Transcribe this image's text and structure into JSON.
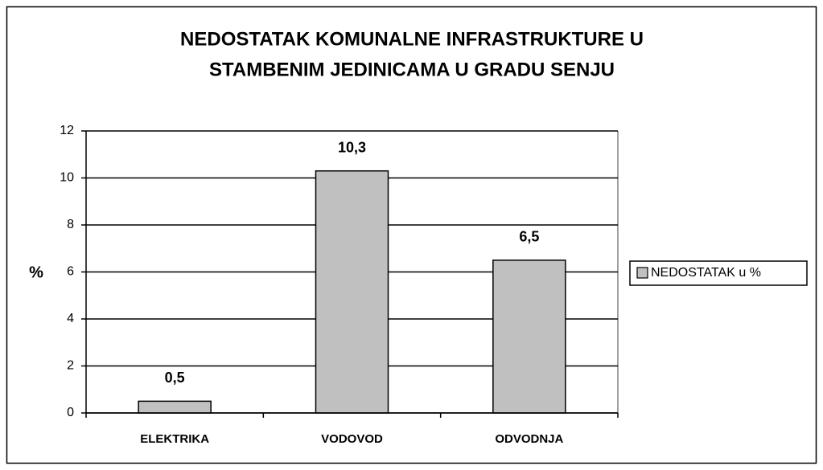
{
  "chart_data": {
    "type": "bar",
    "title": [
      "NEDOSTATAK KOMUNALNE INFRASTRUKTURE U",
      "STAMBENIM JEDINICAMA U GRADU SENJU"
    ],
    "ylabel": "%",
    "categories": [
      "ELEKTRIKA",
      "VODOVOD",
      "ODVODNJA"
    ],
    "series": [
      {
        "name": "NEDOSTATAK u %",
        "color": "#c0c0c0",
        "values": [
          0.5,
          10.3,
          6.5
        ],
        "value_labels": [
          "0,5",
          "10,3",
          "6,5"
        ]
      }
    ],
    "ylim": [
      0,
      12
    ],
    "yticks": [
      0,
      2,
      4,
      6,
      8,
      10,
      12
    ],
    "grid": true,
    "legend": "right"
  }
}
